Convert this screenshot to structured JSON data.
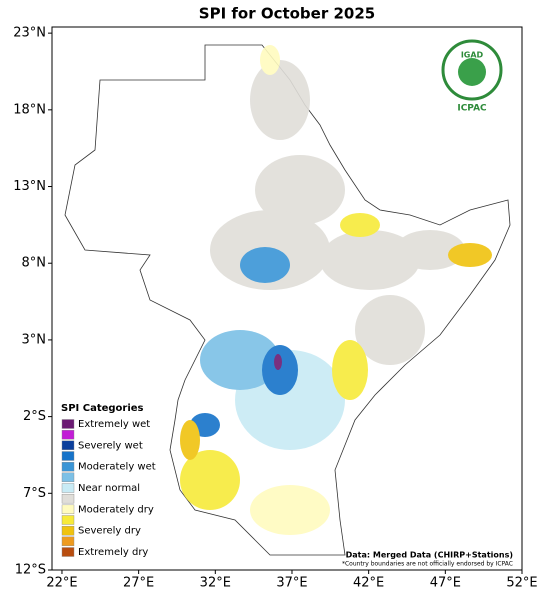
{
  "map": {
    "title": "SPI for October 2025",
    "xlim": [
      21.35,
      52
    ],
    "ylim": [
      -12,
      23.4
    ],
    "xticks": [
      {
        "value": 22,
        "label": "22°E"
      },
      {
        "value": 27,
        "label": "27°E"
      },
      {
        "value": 32,
        "label": "32°E"
      },
      {
        "value": 37,
        "label": "37°E"
      },
      {
        "value": 42,
        "label": "42°E"
      },
      {
        "value": 47,
        "label": "47°E"
      },
      {
        "value": 52,
        "label": "52°E"
      }
    ],
    "yticks": [
      {
        "value": 23,
        "label": "23°N"
      },
      {
        "value": 18,
        "label": "18°N"
      },
      {
        "value": 13,
        "label": "13°N"
      },
      {
        "value": 8,
        "label": "8°N"
      },
      {
        "value": 3,
        "label": "3°N"
      },
      {
        "value": -2,
        "label": "2°S"
      },
      {
        "value": -7,
        "label": "7°S"
      },
      {
        "value": -12,
        "label": "12°S"
      }
    ],
    "legend": {
      "title": "SPI Categories",
      "labels": [
        "Extremely wet",
        "Severely wet",
        "Moderately wet",
        "Near normal",
        "Moderately dry",
        "Severely dry",
        "Extremely dry"
      ],
      "colors": [
        "#6b1a73",
        "#c21dd6",
        "#0c3f9c",
        "#1673c9",
        "#3a95d6",
        "#7cc0e6",
        "#c8ebf5",
        "#e0ded9",
        "#fffbbf",
        "#f7ea3a",
        "#f0c30f",
        "#ee9b1f",
        "#b84d0f"
      ]
    },
    "source": "Data: Merged Data (CHIRP+Stations)",
    "footnote": "*Country boundaries are not officially endorsed by ICPAC",
    "logo": {
      "top": "IGAD",
      "bottom": "ICPAC"
    }
  }
}
